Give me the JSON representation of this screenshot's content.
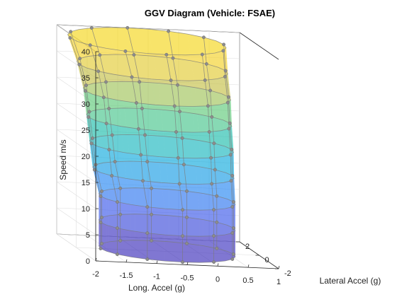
{
  "chart_data": {
    "type": "surface3d",
    "title": "GGV Diagram (Vehicle: FSAE)",
    "xlabel": "Long. Accel (g)",
    "ylabel": "Lateral Accel (g)",
    "zlabel": "Speed m/s",
    "xlim": [
      -2,
      1
    ],
    "ylim": [
      -2,
      2
    ],
    "zlim": [
      0,
      40
    ],
    "x_ticks": [
      "-2",
      "-1.5",
      "-1",
      "-0.5",
      "0",
      "0.5",
      "1"
    ],
    "y_ticks": [
      "-2",
      "0",
      "2"
    ],
    "z_ticks": [
      "0",
      "5",
      "10",
      "15",
      "20",
      "25",
      "30",
      "35",
      "40"
    ],
    "grid": true,
    "colormap": "parula",
    "face_alpha": 0.5,
    "speeds": [
      0,
      5,
      10,
      15,
      20,
      25,
      30,
      35,
      40
    ],
    "levels": [
      {
        "speed": 0,
        "long_accel_min": -1.6,
        "long_accel_max": 0.58,
        "lat_accel_max": 1.6
      },
      {
        "speed": 5,
        "long_accel_min": -1.6,
        "long_accel_max": 0.58,
        "lat_accel_max": 1.6
      },
      {
        "speed": 10,
        "long_accel_min": -1.6,
        "long_accel_max": 0.58,
        "lat_accel_max": 1.6
      },
      {
        "speed": 15,
        "long_accel_min": -1.7,
        "long_accel_max": 0.56,
        "lat_accel_max": 1.65
      },
      {
        "speed": 20,
        "long_accel_min": -1.75,
        "long_accel_max": 0.55,
        "lat_accel_max": 1.7
      },
      {
        "speed": 25,
        "long_accel_min": -1.8,
        "long_accel_max": 0.52,
        "lat_accel_max": 1.75
      },
      {
        "speed": 30,
        "long_accel_min": -1.85,
        "long_accel_max": 0.5,
        "lat_accel_max": 1.8
      },
      {
        "speed": 35,
        "long_accel_min": -1.95,
        "long_accel_max": 0.45,
        "lat_accel_max": 1.9
      },
      {
        "speed": 40,
        "long_accel_min": -2.1,
        "long_accel_max": 0.42,
        "lat_accel_max": 2.0
      }
    ]
  }
}
